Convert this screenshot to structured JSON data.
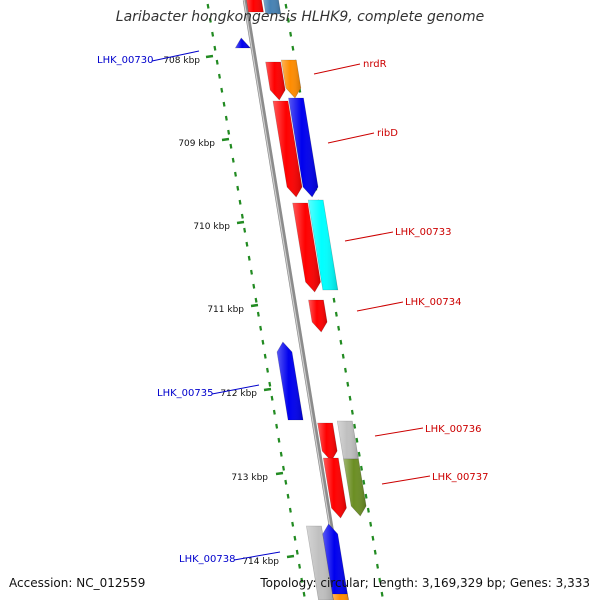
{
  "title": "Laribacter hongkongensis HLHK9, complete genome",
  "footer": {
    "accession": "Accession: NC_012559",
    "summary": "Topology: circular; Length: 3,169,329 bp; Genes: 3,333"
  },
  "colors": {
    "backbone": "#8c8c8c",
    "tick": "#228b22",
    "forward_label": "#0000cc",
    "reverse_label": "#cc0000"
  },
  "ruler_ticks": [
    {
      "label": "708 kbp",
      "position_kbp": 708
    },
    {
      "label": "709 kbp",
      "position_kbp": 709
    },
    {
      "label": "710 kbp",
      "position_kbp": 710
    },
    {
      "label": "711 kbp",
      "position_kbp": 711
    },
    {
      "label": "712 kbp",
      "position_kbp": 712
    },
    {
      "label": "713 kbp",
      "position_kbp": 713
    },
    {
      "label": "714 kbp",
      "position_kbp": 714
    }
  ],
  "genes": [
    {
      "name": "",
      "strand": "reverse",
      "color": "#ff0000"
    },
    {
      "name": "",
      "strand": "reverse",
      "color": "#4682b4"
    },
    {
      "name": "LHK_00730",
      "strand": "forward",
      "color": "#0000ee"
    },
    {
      "name": "nrdR",
      "strand": "reverse",
      "color": "#ff8c00"
    },
    {
      "name": "",
      "strand": "reverse",
      "color": "#ff0000"
    },
    {
      "name": "ribD",
      "strand": "reverse",
      "color": "#0000ee"
    },
    {
      "name": "",
      "strand": "reverse",
      "color": "#ff0000"
    },
    {
      "name": "LHK_00733",
      "strand": "reverse",
      "color": "#00ffff"
    },
    {
      "name": "",
      "strand": "reverse",
      "color": "#ff0000"
    },
    {
      "name": "LHK_00734",
      "strand": "reverse",
      "color": "#ff0000"
    },
    {
      "name": "LHK_00735",
      "strand": "forward",
      "color": "#0000ee"
    },
    {
      "name": "LHK_00736",
      "strand": "reverse",
      "color": "#c0c0c0"
    },
    {
      "name": "",
      "strand": "reverse",
      "color": "#ff0000"
    },
    {
      "name": "LHK_00737",
      "strand": "reverse",
      "color": "#6b8e23"
    },
    {
      "name": "",
      "strand": "reverse",
      "color": "#ff0000"
    },
    {
      "name": "LHK_00738",
      "strand": "forward",
      "color": "#c0c0c0"
    },
    {
      "name": "",
      "strand": "reverse",
      "color": "#0000ee"
    },
    {
      "name": "",
      "strand": "reverse",
      "color": "#ff8c00"
    }
  ]
}
